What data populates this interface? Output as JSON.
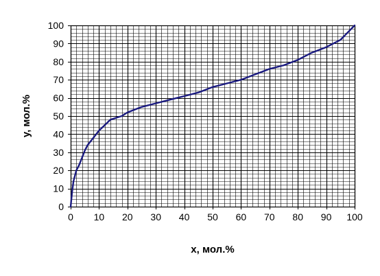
{
  "chart_data": {
    "type": "line",
    "title": "",
    "xlabel": "x, мол.%",
    "ylabel": "y, мол.%",
    "xlim": [
      0,
      100
    ],
    "ylim": [
      0,
      100
    ],
    "x_ticks": [
      0,
      10,
      20,
      30,
      40,
      50,
      60,
      70,
      80,
      90,
      100
    ],
    "y_ticks": [
      0,
      10,
      20,
      30,
      40,
      50,
      60,
      70,
      80,
      90,
      100
    ],
    "x_tick_labels": [
      "0",
      "10",
      "20",
      "30",
      "40",
      "50",
      "60",
      "70",
      "80",
      "90",
      "100"
    ],
    "y_tick_labels": [
      "0",
      "10",
      "20",
      "30",
      "40",
      "50",
      "60",
      "70",
      "80",
      "90",
      "100"
    ],
    "grid": true,
    "legend": "none",
    "series": [
      {
        "color": "#1a1a80",
        "x": [
          0,
          0.5,
          1,
          2,
          3,
          4,
          5,
          6,
          8,
          10,
          12,
          14,
          16,
          18,
          20,
          25,
          30,
          35,
          40,
          45,
          50,
          55,
          60,
          65,
          70,
          75,
          80,
          85,
          90,
          95,
          100
        ],
        "y": [
          0,
          8,
          14,
          20,
          23,
          27,
          31,
          34,
          38,
          42,
          45,
          48,
          49,
          50,
          52,
          55,
          57,
          59,
          61,
          63,
          66,
          68,
          70,
          73,
          76,
          78,
          81,
          85,
          88,
          92,
          100
        ]
      }
    ]
  }
}
